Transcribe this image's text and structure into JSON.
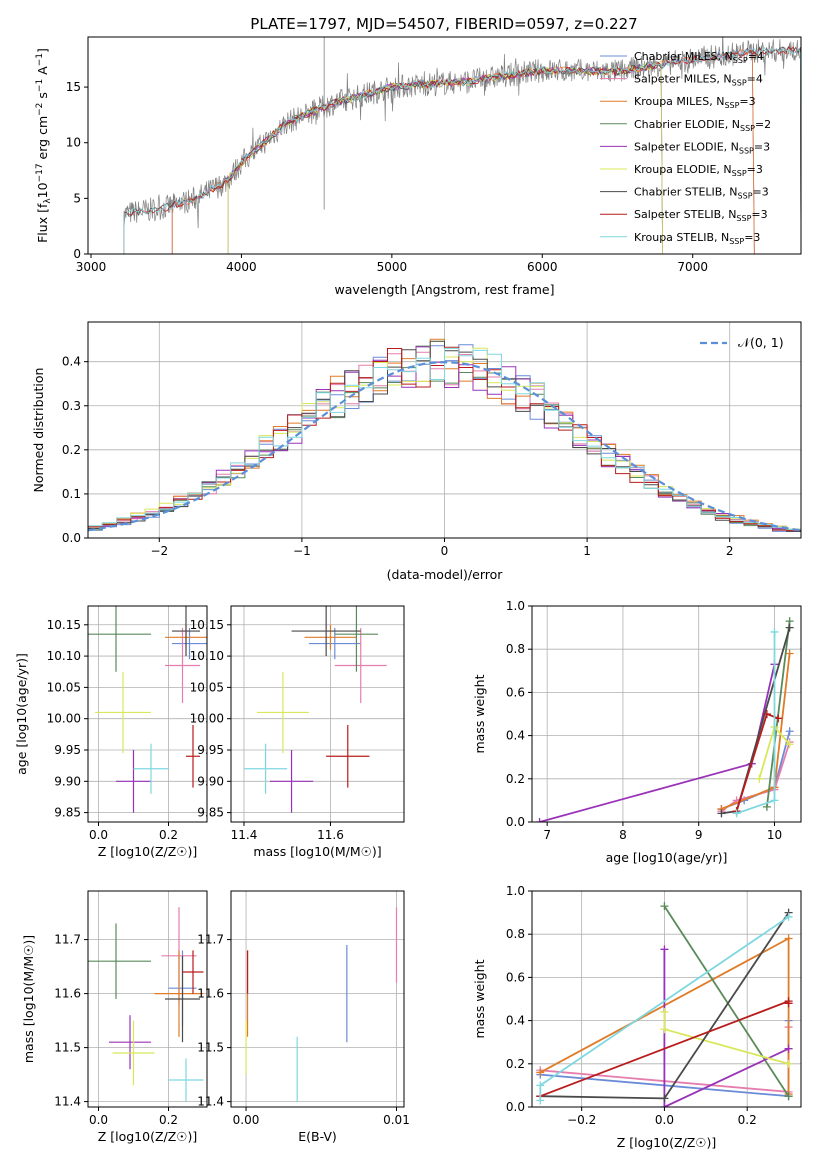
{
  "title": "PLATE=1797, MJD=54507, FIBERID=0597, z=0.227",
  "colors": {
    "Chabrier MILES": "#6a8cd8",
    "Salpeter MILES": "#e57dae",
    "Kroupa MILES": "#e07b28",
    "Chabrier ELODIE": "#5a8a5a",
    "Salpeter ELODIE": "#9a32b8",
    "Kroupa ELODIE": "#d8e85a",
    "Chabrier STELIB": "#4a4a4a",
    "Salpeter STELIB": "#b81c1c",
    "Kroupa STELIB": "#7fd8e0"
  },
  "legend1": [
    {
      "name": "Chabrier MILES",
      "nssp": "4"
    },
    {
      "name": "Salpeter MILES",
      "nssp": "4"
    },
    {
      "name": "Kroupa MILES",
      "nssp": "3"
    },
    {
      "name": "Chabrier ELODIE",
      "nssp": "2"
    },
    {
      "name": "Salpeter ELODIE",
      "nssp": "3"
    },
    {
      "name": "Kroupa ELODIE",
      "nssp": "3"
    },
    {
      "name": "Chabrier STELIB",
      "nssp": "3"
    },
    {
      "name": "Salpeter STELIB",
      "nssp": "3"
    },
    {
      "name": "Kroupa STELIB",
      "nssp": "3"
    }
  ],
  "legend2": "𝒩(0, 1)",
  "chart_data": [
    {
      "type": "line",
      "id": "spectrum",
      "title": "PLATE=1797, MJD=54507, FIBERID=0597, z=0.227",
      "xlabel": "wavelength [Angstrom, rest frame]",
      "ylabel": "Flux [f_λ 10^-17 erg cm^-2 s^-1 A^-1]",
      "xlim": [
        2980,
        7720
      ],
      "ylim": [
        0,
        19.5
      ],
      "xticks": [
        3000,
        4000,
        5000,
        6000,
        7000
      ],
      "yticks": [
        0,
        5,
        10,
        15
      ],
      "continuum": [
        [
          3220,
          3.6
        ],
        [
          3500,
          4.2
        ],
        [
          3700,
          5.0
        ],
        [
          3900,
          6.5
        ],
        [
          4000,
          8.2
        ],
        [
          4300,
          11.8
        ],
        [
          4600,
          13.5
        ],
        [
          5000,
          15.0
        ],
        [
          5500,
          15.5
        ],
        [
          6000,
          16.5
        ],
        [
          6500,
          16.4
        ],
        [
          7000,
          17.5
        ],
        [
          7400,
          18.2
        ],
        [
          7700,
          18.3
        ]
      ],
      "model_ranges": {
        "Chabrier MILES": [
          3540,
          7410
        ],
        "Salpeter MILES": [
          3540,
          7410
        ],
        "Kroupa MILES": [
          3540,
          7410
        ],
        "Chabrier ELODIE": [
          3910,
          6800
        ],
        "Salpeter ELODIE": [
          3910,
          6800
        ],
        "Kroupa ELODIE": [
          3910,
          6800
        ],
        "Chabrier STELIB": [
          3220,
          7720
        ],
        "Salpeter STELIB": [
          3220,
          7720
        ],
        "Kroupa STELIB": [
          3220,
          7720
        ]
      }
    },
    {
      "type": "histogram",
      "id": "residuals",
      "xlabel": "(data-model)/error",
      "ylabel": "Normed distribution",
      "xlim": [
        -2.5,
        2.5
      ],
      "ylim": [
        0,
        0.49
      ],
      "xticks": [
        -2,
        -1,
        0,
        1,
        2
      ],
      "yticks": [
        0.0,
        0.1,
        0.2,
        0.3,
        0.4
      ],
      "reference": "standard normal N(0,1)"
    },
    {
      "type": "scatter",
      "id": "age-vs-Z",
      "xlabel": "Z [log10(Z/Z☉)]",
      "ylabel": "age  [log10(age/yr)]",
      "xlim": [
        -0.03,
        0.31
      ],
      "ylim": [
        9.835,
        10.18
      ],
      "xticks": [
        0.0,
        0.2
      ],
      "yticks": [
        9.85,
        9.9,
        9.95,
        10.0,
        10.05,
        10.1,
        10.15
      ],
      "points": [
        {
          "series": "Chabrier MILES",
          "x": 0.26,
          "y": 10.12,
          "xerr": 0.05,
          "yerr": 0.025
        },
        {
          "series": "Salpeter MILES",
          "x": 0.24,
          "y": 10.085,
          "xerr": 0.05,
          "yerr": 0.06
        },
        {
          "series": "Kroupa MILES",
          "x": 0.25,
          "y": 10.13,
          "xerr": 0.06,
          "yerr": 0.02
        },
        {
          "series": "Chabrier ELODIE",
          "x": 0.05,
          "y": 10.135,
          "xerr": 0.1,
          "yerr": 0.06
        },
        {
          "series": "Salpeter ELODIE",
          "x": 0.1,
          "y": 9.9,
          "xerr": 0.05,
          "yerr": 0.05
        },
        {
          "series": "Kroupa ELODIE",
          "x": 0.07,
          "y": 10.01,
          "xerr": 0.08,
          "yerr": 0.065
        },
        {
          "series": "Chabrier STELIB",
          "x": 0.25,
          "y": 10.14,
          "xerr": 0.04,
          "yerr": 0.04
        },
        {
          "series": "Salpeter STELIB",
          "x": 0.27,
          "y": 9.94,
          "xerr": 0.02,
          "yerr": 0.05
        },
        {
          "series": "Kroupa STELIB",
          "x": 0.15,
          "y": 9.92,
          "xerr": 0.05,
          "yerr": 0.04
        }
      ]
    },
    {
      "type": "scatter",
      "id": "age-vs-mass",
      "xlabel": "mass [log10(M/M☉)]",
      "ylabel": "",
      "xlim": [
        11.37,
        11.77
      ],
      "ylim": [
        9.835,
        10.18
      ],
      "xticks": [
        11.4,
        11.6
      ],
      "yticks": [
        9.85,
        9.9,
        9.95,
        10.0,
        10.05,
        10.1,
        10.15
      ],
      "points": [
        {
          "series": "Chabrier MILES",
          "x": 11.61,
          "y": 10.12,
          "xerr": 0.06,
          "yerr": 0.025
        },
        {
          "series": "Salpeter MILES",
          "x": 11.67,
          "y": 10.085,
          "xerr": 0.06,
          "yerr": 0.06
        },
        {
          "series": "Kroupa MILES",
          "x": 11.6,
          "y": 10.13,
          "xerr": 0.06,
          "yerr": 0.02
        },
        {
          "series": "Chabrier ELODIE",
          "x": 11.66,
          "y": 10.135,
          "xerr": 0.05,
          "yerr": 0.06
        },
        {
          "series": "Salpeter ELODIE",
          "x": 11.51,
          "y": 9.9,
          "xerr": 0.05,
          "yerr": 0.05
        },
        {
          "series": "Kroupa ELODIE",
          "x": 11.49,
          "y": 10.01,
          "xerr": 0.06,
          "yerr": 0.065
        },
        {
          "series": "Chabrier STELIB",
          "x": 11.59,
          "y": 10.14,
          "xerr": 0.08,
          "yerr": 0.04
        },
        {
          "series": "Salpeter STELIB",
          "x": 11.64,
          "y": 9.94,
          "xerr": 0.05,
          "yerr": 0.05
        },
        {
          "series": "Kroupa STELIB",
          "x": 11.45,
          "y": 9.92,
          "xerr": 0.05,
          "yerr": 0.04
        }
      ]
    },
    {
      "type": "line",
      "id": "massweight-vs-age",
      "xlabel": "age  [log10(age/yr)]",
      "ylabel": "mass weight",
      "xlim": [
        6.8,
        10.35
      ],
      "ylim": [
        0,
        1.0
      ],
      "xticks": [
        7,
        8,
        9,
        10
      ],
      "yticks": [
        0.0,
        0.2,
        0.4,
        0.6,
        0.8,
        1.0
      ],
      "series": [
        {
          "name": "Chabrier MILES",
          "points": [
            [
              9.3,
              0.06
            ],
            [
              9.6,
              0.1
            ],
            [
              10.0,
              0.16
            ],
            [
              10.2,
              0.42
            ]
          ]
        },
        {
          "name": "Salpeter MILES",
          "points": [
            [
              9.3,
              0.05
            ],
            [
              9.5,
              0.1
            ],
            [
              10.0,
              0.15
            ],
            [
              10.2,
              0.37
            ]
          ]
        },
        {
          "name": "Kroupa MILES",
          "points": [
            [
              9.3,
              0.06
            ],
            [
              10.0,
              0.16
            ],
            [
              10.2,
              0.78
            ]
          ]
        },
        {
          "name": "Chabrier ELODIE",
          "points": [
            [
              9.9,
              0.07
            ],
            [
              10.2,
              0.93
            ]
          ]
        },
        {
          "name": "Salpeter ELODIE",
          "points": [
            [
              6.9,
              0.0
            ],
            [
              9.7,
              0.27
            ],
            [
              10.0,
              0.73
            ]
          ]
        },
        {
          "name": "Kroupa ELODIE",
          "points": [
            [
              9.8,
              0.2
            ],
            [
              10.0,
              0.44
            ],
            [
              10.2,
              0.36
            ]
          ]
        },
        {
          "name": "Chabrier STELIB",
          "points": [
            [
              9.3,
              0.04
            ],
            [
              9.5,
              0.05
            ],
            [
              10.2,
              0.9
            ]
          ]
        },
        {
          "name": "Salpeter STELIB",
          "points": [
            [
              9.5,
              0.05
            ],
            [
              9.9,
              0.5
            ],
            [
              10.05,
              0.48
            ]
          ]
        },
        {
          "name": "Kroupa STELIB",
          "points": [
            [
              9.5,
              0.04
            ],
            [
              10.0,
              0.1
            ],
            [
              10.0,
              0.88
            ]
          ]
        }
      ]
    },
    {
      "type": "scatter",
      "id": "mass-vs-Z",
      "xlabel": "Z [log10(Z/Z☉)]",
      "ylabel": "mass [log10(M/M☉)]",
      "xlim": [
        -0.03,
        0.31
      ],
      "ylim": [
        11.39,
        11.79
      ],
      "xticks": [
        0.0,
        0.2
      ],
      "yticks": [
        11.4,
        11.5,
        11.6,
        11.7
      ],
      "points": [
        {
          "series": "Chabrier MILES",
          "x": 0.24,
          "y": 11.61,
          "xerr": 0.04,
          "yerr": 0.07
        },
        {
          "series": "Salpeter MILES",
          "x": 0.23,
          "y": 11.67,
          "xerr": 0.05,
          "yerr": 0.09
        },
        {
          "series": "Kroupa MILES",
          "x": 0.23,
          "y": 11.6,
          "xerr": 0.07,
          "yerr": 0.08
        },
        {
          "series": "Chabrier ELODIE",
          "x": 0.05,
          "y": 11.66,
          "xerr": 0.1,
          "yerr": 0.07
        },
        {
          "series": "Salpeter ELODIE",
          "x": 0.09,
          "y": 11.51,
          "xerr": 0.06,
          "yerr": 0.05
        },
        {
          "series": "Kroupa ELODIE",
          "x": 0.1,
          "y": 11.49,
          "xerr": 0.06,
          "yerr": 0.06
        },
        {
          "series": "Chabrier STELIB",
          "x": 0.24,
          "y": 11.59,
          "xerr": 0.05,
          "yerr": 0.08
        },
        {
          "series": "Salpeter STELIB",
          "x": 0.27,
          "y": 11.64,
          "xerr": 0.03,
          "yerr": 0.04
        },
        {
          "series": "Kroupa STELIB",
          "x": 0.25,
          "y": 11.44,
          "xerr": 0.05,
          "yerr": 0.04
        }
      ]
    },
    {
      "type": "scatter",
      "id": "mass-vs-EBV",
      "xlabel": "E(B-V)",
      "ylabel": "",
      "xlim": [
        -0.001,
        0.0105
      ],
      "ylim": [
        11.39,
        11.79
      ],
      "xticks": [
        0.0,
        0.01
      ],
      "yticks": [
        11.4,
        11.5,
        11.6,
        11.7
      ],
      "points": [
        {
          "series": "Chabrier MILES",
          "x": 0.0067,
          "y": 11.6,
          "yerr": 0.09
        },
        {
          "series": "Salpeter MILES",
          "x": 0.01,
          "y": 11.69,
          "yerr": 0.07
        },
        {
          "series": "Kroupa MILES",
          "x": 0.0001,
          "y": 11.6,
          "yerr": 0.08
        },
        {
          "series": "Kroupa ELODIE",
          "x": 0.0,
          "y": 11.5,
          "yerr": 0.05
        },
        {
          "series": "Salpeter STELIB",
          "x": 0.0001,
          "y": 11.64,
          "yerr": 0.04
        },
        {
          "series": "Kroupa STELIB",
          "x": 0.0034,
          "y": 11.46,
          "yerr": 0.06
        }
      ]
    },
    {
      "type": "line",
      "id": "massweight-vs-Z",
      "xlabel": "Z [log10(Z/Z☉)]",
      "ylabel": "mass weight",
      "xlim": [
        -0.32,
        0.33
      ],
      "ylim": [
        0,
        1.0
      ],
      "xticks": [
        -0.2,
        0.0,
        0.2
      ],
      "yticks": [
        0.0,
        0.2,
        0.4,
        0.6,
        0.8,
        1.0
      ],
      "series": [
        {
          "name": "Chabrier MILES",
          "points": [
            [
              -0.3,
              0.15
            ],
            [
              0.3,
              0.05
            ],
            [
              0.3,
              0.4
            ]
          ]
        },
        {
          "name": "Salpeter MILES",
          "points": [
            [
              -0.3,
              0.17
            ],
            [
              0.3,
              0.07
            ],
            [
              0.3,
              0.37
            ]
          ]
        },
        {
          "name": "Kroupa MILES",
          "points": [
            [
              -0.3,
              0.16
            ],
            [
              0.3,
              0.78
            ],
            [
              0.3,
              0.06
            ]
          ]
        },
        {
          "name": "Chabrier ELODIE",
          "points": [
            [
              0.0,
              0.93
            ],
            [
              0.3,
              0.05
            ]
          ]
        },
        {
          "name": "Salpeter ELODIE",
          "points": [
            [
              0.0,
              0.73
            ],
            [
              0.0,
              0.0
            ],
            [
              0.3,
              0.27
            ]
          ]
        },
        {
          "name": "Kroupa ELODIE",
          "points": [
            [
              0.0,
              0.44
            ],
            [
              0.0,
              0.36
            ],
            [
              0.3,
              0.2
            ]
          ]
        },
        {
          "name": "Chabrier STELIB",
          "points": [
            [
              -0.3,
              0.05
            ],
            [
              0.0,
              0.04
            ],
            [
              0.3,
              0.9
            ]
          ]
        },
        {
          "name": "Salpeter STELIB",
          "points": [
            [
              -0.3,
              0.05
            ],
            [
              0.3,
              0.49
            ],
            [
              0.3,
              0.48
            ]
          ]
        },
        {
          "name": "Kroupa STELIB",
          "points": [
            [
              -0.3,
              0.03
            ],
            [
              -0.3,
              0.1
            ],
            [
              0.3,
              0.88
            ]
          ]
        }
      ]
    }
  ]
}
